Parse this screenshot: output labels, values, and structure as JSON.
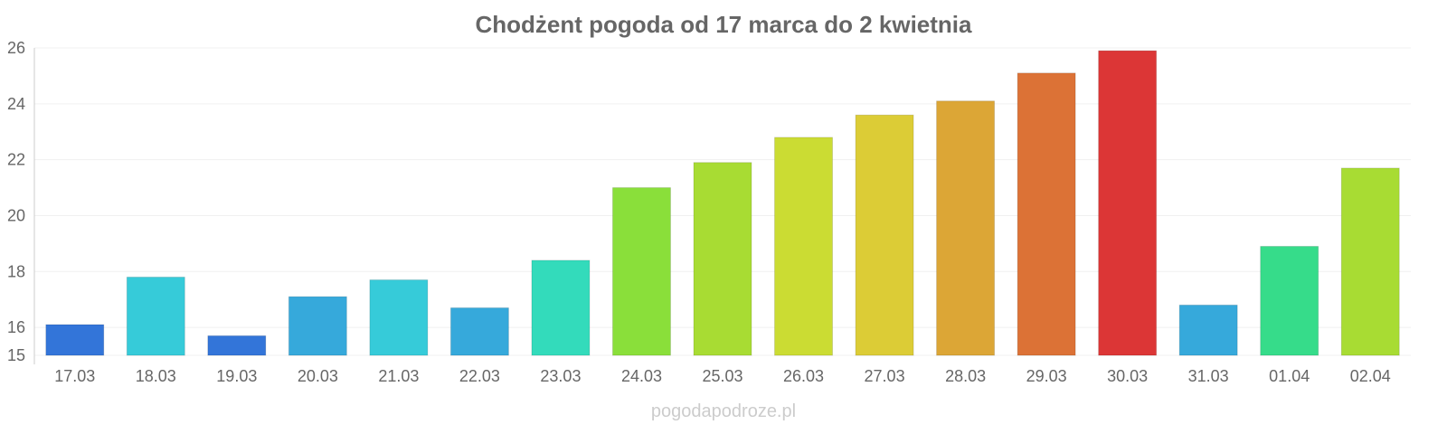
{
  "chart_data": {
    "type": "bar",
    "title": "Chodżent pogoda od 17 marca do 2 kwietnia",
    "xlabel": "",
    "ylabel": "",
    "ylim": [
      15,
      26
    ],
    "yticks": [
      15,
      16,
      18,
      20,
      22,
      24,
      26
    ],
    "grid": true,
    "categories": [
      "17.03",
      "18.03",
      "19.03",
      "20.03",
      "21.03",
      "22.03",
      "23.03",
      "24.03",
      "25.03",
      "26.03",
      "27.03",
      "28.03",
      "29.03",
      "30.03",
      "31.03",
      "01.04",
      "02.04"
    ],
    "values": [
      16.1,
      17.8,
      15.7,
      17.1,
      17.7,
      16.7,
      18.4,
      21.0,
      21.9,
      22.8,
      23.6,
      24.1,
      25.1,
      25.9,
      16.8,
      18.9,
      21.7
    ],
    "colors": [
      "#3375d9",
      "#36cbd9",
      "#3375d9",
      "#36a9db",
      "#36cbd9",
      "#36a9db",
      "#33dbbb",
      "#8adf3a",
      "#a8dc33",
      "#cbdc33",
      "#dccc36",
      "#dca636",
      "#dc7236",
      "#dc3636",
      "#36a9db",
      "#36dc8a",
      "#a8dc33"
    ]
  },
  "credit": "pogodapodroze.pl"
}
